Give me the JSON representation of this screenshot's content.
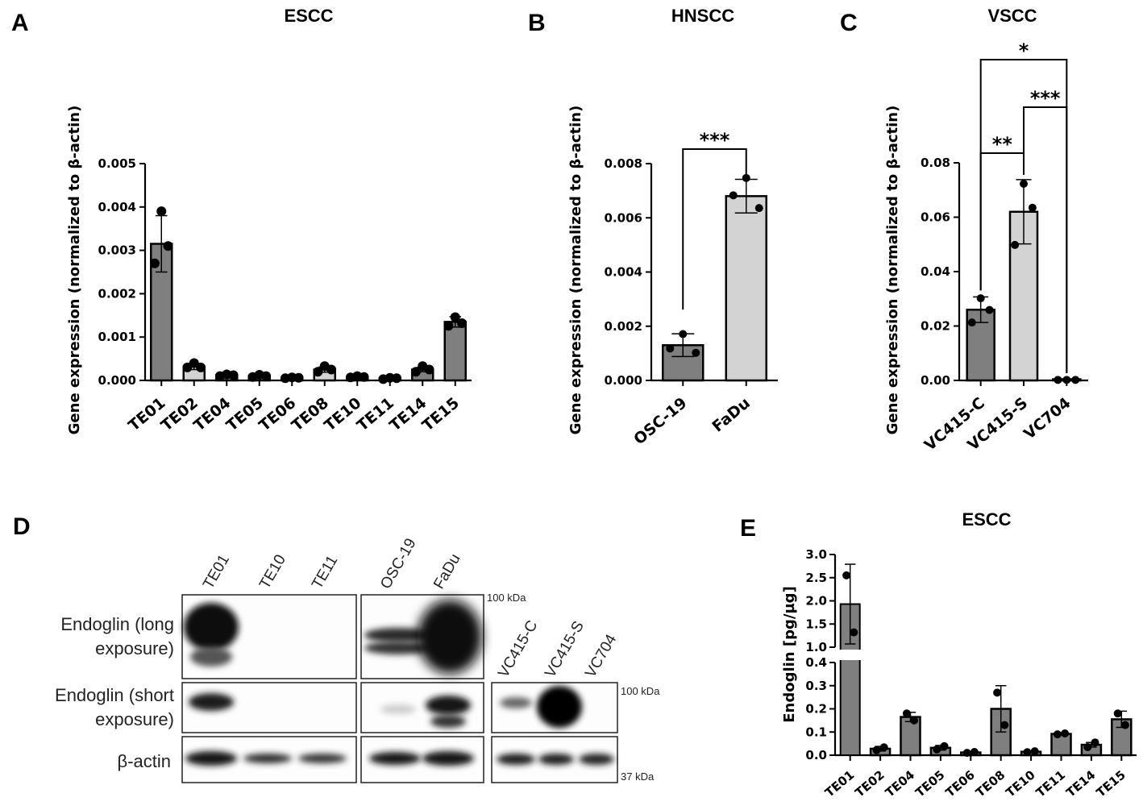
{
  "chart_data": [
    {
      "panel": "A",
      "type": "bar",
      "title": "ESCC",
      "ylabel": "Gene expression (normalized to β-actin)",
      "ylim": [
        0,
        0.005
      ],
      "yticks": [
        "0.000",
        "0.001",
        "0.002",
        "0.003",
        "0.004",
        "0.005"
      ],
      "categories": [
        "TE01",
        "TE02",
        "TE04",
        "TE05",
        "TE06",
        "TE08",
        "TE10",
        "TE11",
        "TE14",
        "TE15"
      ],
      "values": [
        0.00315,
        0.00032,
        0.00012,
        0.0001,
        6e-05,
        0.00025,
        8e-05,
        5e-05,
        0.00025,
        0.00135
      ],
      "errors": [
        0.00065,
        7e-05,
        3e-05,
        3e-05,
        2e-05,
        6e-05,
        2e-05,
        2e-05,
        5e-05,
        0.00012
      ],
      "points": [
        [
          0.0039,
          0.0031,
          0.0027
        ],
        [
          0.0004,
          0.0003,
          0.0003
        ],
        [
          0.00014,
          0.00012,
          0.0001
        ],
        [
          0.00013,
          0.0001,
          8e-05
        ],
        [
          7e-05,
          6e-05,
          5e-05
        ],
        [
          0.00033,
          0.00025,
          0.0002
        ],
        [
          0.0001,
          8e-05,
          7e-05
        ],
        [
          6e-05,
          5e-05,
          3e-05
        ],
        [
          0.00033,
          0.00025,
          0.0002
        ],
        [
          0.00146,
          0.00132,
          0.00126
        ]
      ],
      "colors": [
        "#7f7f7f",
        "#d3d3d3",
        "#7f7f7f",
        "#d3d3d3",
        "#7f7f7f",
        "#d3d3d3",
        "#7f7f7f",
        "#d3d3d3",
        "#7f7f7f",
        "#7f7f7f"
      ]
    },
    {
      "panel": "B",
      "type": "bar",
      "title": "HNSCC",
      "ylabel": "Gene expression (normalized to β-actin)",
      "ylim": [
        0,
        0.008
      ],
      "yticks": [
        "0.000",
        "0.002",
        "0.004",
        "0.006",
        "0.008"
      ],
      "categories": [
        "OSC-19",
        "FaDu"
      ],
      "values": [
        0.0013,
        0.0068
      ],
      "errors": [
        0.00042,
        0.00062
      ],
      "points": [
        [
          0.00171,
          0.00102,
          0.00118
        ],
        [
          0.00747,
          0.00636,
          0.00683
        ]
      ],
      "colors": [
        "#7f7f7f",
        "#d3d3d3"
      ],
      "significance": [
        {
          "between": [
            0,
            1
          ],
          "label": "***"
        }
      ]
    },
    {
      "panel": "C",
      "type": "bar",
      "title": "VSCC",
      "ylabel": "Gene expression (normalized to β-actin)",
      "ylim": [
        0,
        0.08
      ],
      "yticks": [
        "0.00",
        "0.02",
        "0.04",
        "0.06",
        "0.08"
      ],
      "categories": [
        "VC415-C",
        "VC415-S",
        "VC704"
      ],
      "values": [
        0.026,
        0.062,
        0.0002
      ],
      "errors": [
        0.0047,
        0.0118,
        0.0001
      ],
      "points": [
        [
          0.0302,
          0.0259,
          0.0213
        ],
        [
          0.0723,
          0.0635,
          0.0498
        ],
        [
          0.0002,
          0.0002,
          0.0002
        ]
      ],
      "colors": [
        "#7f7f7f",
        "#d3d3d3",
        "#7f7f7f"
      ],
      "significance": [
        {
          "between": [
            0,
            1
          ],
          "label": "**"
        },
        {
          "between": [
            1,
            2
          ],
          "label": "***"
        },
        {
          "between": [
            0,
            2
          ],
          "label": "*"
        }
      ]
    },
    {
      "panel": "E",
      "type": "bar",
      "title": "ESCC",
      "ylabel": "Endoglin [pg/µg]",
      "axis_break": {
        "lower": [
          0,
          0.4
        ],
        "upper": [
          1.0,
          3.0
        ]
      },
      "yticks_lower": [
        "0.0",
        "0.1",
        "0.2",
        "0.3",
        "0.4"
      ],
      "yticks_upper": [
        "1.0",
        "1.5",
        "2.0",
        "2.5",
        "3.0"
      ],
      "categories": [
        "TE01",
        "TE02",
        "TE04",
        "TE05",
        "TE06",
        "TE08",
        "TE10",
        "TE11",
        "TE14",
        "TE15"
      ],
      "values": [
        1.93,
        0.028,
        0.165,
        0.032,
        0.012,
        0.2,
        0.015,
        0.092,
        0.045,
        0.155
      ],
      "errors": [
        0.86,
        0.01,
        0.02,
        0.01,
        0.003,
        0.1,
        0.003,
        0.005,
        0.01,
        0.035
      ],
      "points": [
        [
          2.55,
          1.32
        ],
        [
          0.022,
          0.034
        ],
        [
          0.18,
          0.15
        ],
        [
          0.025,
          0.039
        ],
        [
          0.01,
          0.014
        ],
        [
          0.27,
          0.13
        ],
        [
          0.013,
          0.017
        ],
        [
          0.09,
          0.094
        ],
        [
          0.035,
          0.055
        ],
        [
          0.18,
          0.13
        ]
      ],
      "colors": [
        "#7f7f7f",
        "#7f7f7f",
        "#7f7f7f",
        "#7f7f7f",
        "#7f7f7f",
        "#7f7f7f",
        "#7f7f7f",
        "#7f7f7f",
        "#7f7f7f",
        "#7f7f7f"
      ]
    }
  ],
  "western_blot": {
    "panel": "D",
    "lanes_group1": [
      "TE01",
      "TE10",
      "TE11"
    ],
    "lanes_group2": [
      "OSC-19",
      "FaDu"
    ],
    "lanes_group3": [
      "VC415-C",
      "VC415-S",
      "VC704"
    ],
    "row_labels": [
      [
        "Endoglin (long",
        "exposure)"
      ],
      [
        "Endoglin (short",
        "exposure)"
      ],
      [
        "β-actin"
      ]
    ],
    "markers": [
      "100 kDa",
      "100 kDa",
      "37 kDa"
    ]
  },
  "panel_labels": [
    "A",
    "B",
    "C",
    "D",
    "E"
  ]
}
